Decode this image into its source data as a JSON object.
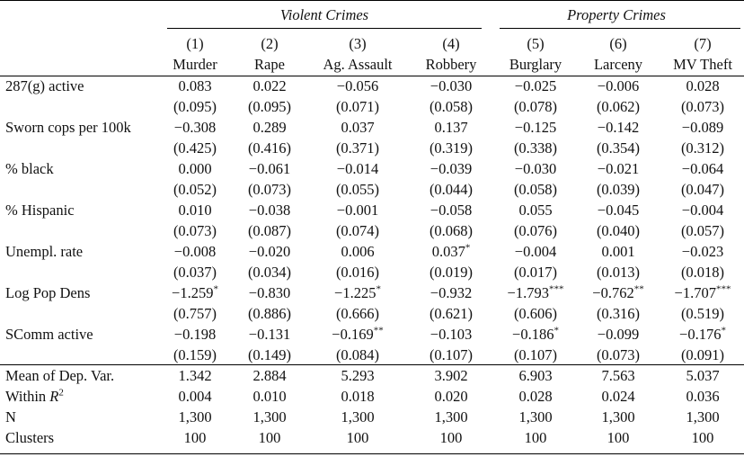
{
  "groups": [
    {
      "label": "Violent Crimes"
    },
    {
      "label": "Property Crimes"
    }
  ],
  "columns": [
    {
      "number": "(1)",
      "name": "Murder"
    },
    {
      "number": "(2)",
      "name": "Rape"
    },
    {
      "number": "(3)",
      "name": "Ag. Assault"
    },
    {
      "number": "(4)",
      "name": "Robbery"
    },
    {
      "number": "(5)",
      "name": "Burglary"
    },
    {
      "number": "(6)",
      "name": "Larceny"
    },
    {
      "number": "(7)",
      "name": "MV Theft"
    }
  ],
  "variables": [
    {
      "label": "287(g) active",
      "coef": [
        [
          "0.083",
          ""
        ],
        [
          "0.022",
          ""
        ],
        [
          "−0.056",
          ""
        ],
        [
          "−0.030",
          ""
        ],
        [
          "−0.025",
          ""
        ],
        [
          "−0.006",
          ""
        ],
        [
          "0.028",
          ""
        ]
      ],
      "se": [
        "(0.095)",
        "(0.095)",
        "(0.071)",
        "(0.058)",
        "(0.078)",
        "(0.062)",
        "(0.073)"
      ]
    },
    {
      "label": "Sworn cops per 100k",
      "coef": [
        [
          "−0.308",
          ""
        ],
        [
          "0.289",
          ""
        ],
        [
          "0.037",
          ""
        ],
        [
          "0.137",
          ""
        ],
        [
          "−0.125",
          ""
        ],
        [
          "−0.142",
          ""
        ],
        [
          "−0.089",
          ""
        ]
      ],
      "se": [
        "(0.425)",
        "(0.416)",
        "(0.371)",
        "(0.319)",
        "(0.338)",
        "(0.354)",
        "(0.312)"
      ]
    },
    {
      "label": "% black",
      "coef": [
        [
          "0.000",
          ""
        ],
        [
          "−0.061",
          ""
        ],
        [
          "−0.014",
          ""
        ],
        [
          "−0.039",
          ""
        ],
        [
          "−0.030",
          ""
        ],
        [
          "−0.021",
          ""
        ],
        [
          "−0.064",
          ""
        ]
      ],
      "se": [
        "(0.052)",
        "(0.073)",
        "(0.055)",
        "(0.044)",
        "(0.058)",
        "(0.039)",
        "(0.047)"
      ]
    },
    {
      "label": "% Hispanic",
      "coef": [
        [
          "0.010",
          ""
        ],
        [
          "−0.038",
          ""
        ],
        [
          "−0.001",
          ""
        ],
        [
          "−0.058",
          ""
        ],
        [
          "0.055",
          ""
        ],
        [
          "−0.045",
          ""
        ],
        [
          "−0.004",
          ""
        ]
      ],
      "se": [
        "(0.073)",
        "(0.087)",
        "(0.074)",
        "(0.068)",
        "(0.076)",
        "(0.040)",
        "(0.057)"
      ]
    },
    {
      "label": "Unempl. rate",
      "coef": [
        [
          "−0.008",
          ""
        ],
        [
          "−0.020",
          ""
        ],
        [
          "0.006",
          ""
        ],
        [
          "0.037",
          "*"
        ],
        [
          "−0.004",
          ""
        ],
        [
          "0.001",
          ""
        ],
        [
          "−0.023",
          ""
        ]
      ],
      "se": [
        "(0.037)",
        "(0.034)",
        "(0.016)",
        "(0.019)",
        "(0.017)",
        "(0.013)",
        "(0.018)"
      ]
    },
    {
      "label": "Log Pop Dens",
      "coef": [
        [
          "−1.259",
          "*"
        ],
        [
          "−0.830",
          ""
        ],
        [
          "−1.225",
          "*"
        ],
        [
          "−0.932",
          ""
        ],
        [
          "−1.793",
          "***"
        ],
        [
          "−0.762",
          "**"
        ],
        [
          "−1.707",
          "***"
        ]
      ],
      "se": [
        "(0.757)",
        "(0.886)",
        "(0.666)",
        "(0.621)",
        "(0.606)",
        "(0.316)",
        "(0.519)"
      ]
    },
    {
      "label": "SComm active",
      "coef": [
        [
          "−0.198",
          ""
        ],
        [
          "−0.131",
          ""
        ],
        [
          "−0.169",
          "**"
        ],
        [
          "−0.103",
          ""
        ],
        [
          "−0.186",
          "*"
        ],
        [
          "−0.099",
          ""
        ],
        [
          "−0.176",
          "*"
        ]
      ],
      "se": [
        "(0.159)",
        "(0.149)",
        "(0.084)",
        "(0.107)",
        "(0.107)",
        "(0.073)",
        "(0.091)"
      ]
    }
  ],
  "stats": [
    {
      "label": "Mean of Dep. Var.",
      "values": [
        "1.342",
        "2.884",
        "5.293",
        "3.902",
        "6.903",
        "7.563",
        "5.037"
      ]
    },
    {
      "label_prefix": "Within ",
      "label_var": "R",
      "label_sup": "2",
      "values": [
        "0.004",
        "0.010",
        "0.018",
        "0.020",
        "0.028",
        "0.024",
        "0.036"
      ]
    },
    {
      "label": "N",
      "values": [
        "1,300",
        "1,300",
        "1,300",
        "1,300",
        "1,300",
        "1,300",
        "1,300"
      ]
    },
    {
      "label": "Clusters",
      "values": [
        "100",
        "100",
        "100",
        "100",
        "100",
        "100",
        "100"
      ]
    }
  ]
}
